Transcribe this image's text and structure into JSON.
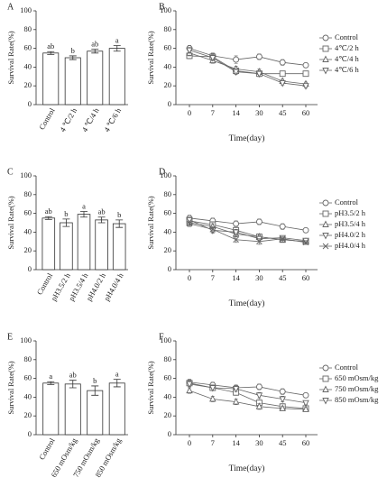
{
  "chart_data": [
    {
      "type": "bar",
      "label": "A",
      "ylabel": "Survival Rate(%)",
      "color": "#ffffff",
      "edge_color": "#333333",
      "categories": [
        "Control",
        "4 ℃/2 h",
        "4 ℃/4 h",
        "4 ℃/6 h"
      ],
      "values": [
        55,
        50,
        57,
        60
      ],
      "errors": [
        1.5,
        2,
        2,
        3
      ],
      "annotations": [
        "ab",
        "b",
        "ab",
        "a"
      ],
      "ylim": [
        0,
        100
      ],
      "yticks": [
        0,
        20,
        40,
        60,
        80,
        100
      ]
    },
    {
      "type": "line",
      "label": "B",
      "ylabel": "Survival Rate(%)",
      "xlabel": "Time(day)",
      "categories": [
        "0",
        "7",
        "14",
        "30",
        "45",
        "60"
      ],
      "series": [
        {
          "name": "Control",
          "color": "#666666",
          "marker": "circle",
          "values": [
            60,
            52,
            48,
            51,
            45,
            42
          ],
          "errors": [
            3,
            3,
            4,
            3,
            3,
            2
          ]
        },
        {
          "name": "4℃/2 h",
          "color": "#666666",
          "marker": "square",
          "values": [
            52,
            51,
            36,
            33,
            33,
            33
          ],
          "errors": [
            3,
            3,
            3,
            3,
            2,
            2
          ]
        },
        {
          "name": "4℃/4 h",
          "color": "#666666",
          "marker": "triangle-up",
          "values": [
            55,
            47,
            38,
            35,
            25,
            22
          ],
          "errors": [
            3,
            3,
            3,
            3,
            2,
            2
          ]
        },
        {
          "name": "4℃/6 h",
          "color": "#666666",
          "marker": "triangle-down",
          "values": [
            58,
            50,
            35,
            33,
            23,
            20
          ],
          "errors": [
            3,
            3,
            3,
            3,
            2,
            2
          ]
        }
      ],
      "ylim": [
        0,
        100
      ],
      "yticks": [
        0,
        20,
        40,
        60,
        80,
        100
      ]
    },
    {
      "type": "bar",
      "label": "C",
      "ylabel": "Survival Rate(%)",
      "color": "#ffffff",
      "edge_color": "#333333",
      "categories": [
        "Control",
        "pH3.5/2 h",
        "pH3.5/4 h",
        "pH4.0/2 h",
        "pH4.0/4 h"
      ],
      "values": [
        55,
        50,
        59,
        53,
        49
      ],
      "errors": [
        1.5,
        4,
        3,
        3,
        4
      ],
      "annotations": [
        "ab",
        "b",
        "a",
        "ab",
        "b"
      ],
      "ylim": [
        0,
        100
      ],
      "yticks": [
        0,
        20,
        40,
        60,
        80,
        100
      ]
    },
    {
      "type": "line",
      "label": "D",
      "ylabel": "Survival Rate(%)",
      "xlabel": "Time(day)",
      "categories": [
        "0",
        "7",
        "14",
        "30",
        "45",
        "60"
      ],
      "series": [
        {
          "name": "Control",
          "color": "#666666",
          "marker": "circle",
          "values": [
            55,
            52,
            49,
            51,
            46,
            42
          ],
          "errors": [
            3,
            3,
            3,
            3,
            3,
            2
          ]
        },
        {
          "name": "pH3.5/2 h",
          "color": "#666666",
          "marker": "square",
          "values": [
            52,
            48,
            42,
            35,
            32,
            30
          ],
          "errors": [
            3,
            3,
            3,
            3,
            2,
            2
          ]
        },
        {
          "name": "pH3.5/4 h",
          "color": "#666666",
          "marker": "triangle-up",
          "values": [
            50,
            46,
            38,
            35,
            32,
            30
          ],
          "errors": [
            3,
            3,
            3,
            3,
            2,
            2
          ]
        },
        {
          "name": "pH4.0/2 h",
          "color": "#666666",
          "marker": "triangle-down",
          "values": [
            53,
            42,
            40,
            33,
            34,
            31
          ],
          "errors": [
            3,
            3,
            3,
            3,
            2,
            2
          ]
        },
        {
          "name": "pH4.0/4 h",
          "color": "#666666",
          "marker": "x",
          "values": [
            49,
            43,
            32,
            30,
            33,
            29
          ],
          "errors": [
            3,
            3,
            3,
            3,
            2,
            2
          ]
        }
      ],
      "ylim": [
        0,
        100
      ],
      "yticks": [
        0,
        20,
        40,
        60,
        80,
        100
      ]
    },
    {
      "type": "bar",
      "label": "E",
      "ylabel": "Survival Rate(%)",
      "color": "#ffffff",
      "edge_color": "#333333",
      "categories": [
        "Control",
        "650 mOsm/kg",
        "750 mOsm/kg",
        "850 mOsm/kg"
      ],
      "values": [
        55,
        54,
        47,
        55
      ],
      "errors": [
        1.5,
        4,
        5,
        4
      ],
      "annotations": [
        "a",
        "ab",
        "b",
        "a"
      ],
      "ylim": [
        0,
        100
      ],
      "yticks": [
        0,
        20,
        40,
        60,
        80,
        100
      ]
    },
    {
      "type": "line",
      "label": "F",
      "ylabel": "Survival Rate(%)",
      "xlabel": "Time(day)",
      "categories": [
        "0",
        "7",
        "14",
        "30",
        "45",
        "60"
      ],
      "series": [
        {
          "name": "Control",
          "color": "#666666",
          "marker": "circle",
          "values": [
            56,
            53,
            50,
            51,
            46,
            42
          ],
          "errors": [
            3,
            3,
            3,
            3,
            3,
            2
          ]
        },
        {
          "name": "650 mOsm/kg",
          "color": "#666666",
          "marker": "square",
          "values": [
            55,
            50,
            45,
            34,
            30,
            28
          ],
          "errors": [
            3,
            3,
            3,
            3,
            3,
            2
          ]
        },
        {
          "name": "750 mOsm/kg",
          "color": "#666666",
          "marker": "triangle-up",
          "values": [
            47,
            38,
            35,
            30,
            28,
            27
          ],
          "errors": [
            3,
            3,
            3,
            3,
            2,
            2
          ]
        },
        {
          "name": "850 mOsm/kg",
          "color": "#666666",
          "marker": "triangle-down",
          "values": [
            54,
            50,
            49,
            42,
            38,
            34
          ],
          "errors": [
            3,
            3,
            3,
            3,
            3,
            2
          ]
        }
      ],
      "ylim": [
        0,
        100
      ],
      "yticks": [
        0,
        20,
        40,
        60,
        80,
        100
      ]
    }
  ]
}
